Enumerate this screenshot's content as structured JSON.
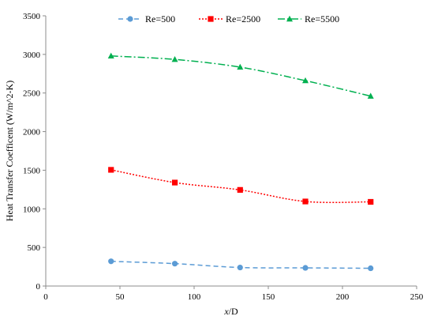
{
  "chart_data": {
    "type": "line",
    "xlabel_italic": "x",
    "xlabel_rest": "/D",
    "ylabel": "Heat Transfer Coefficent (W/m^2-K)",
    "xlim": [
      0,
      250
    ],
    "ylim": [
      0,
      3500
    ],
    "xticks": [
      "0",
      "50",
      "100",
      "150",
      "200",
      "250"
    ],
    "yticks": [
      "0",
      "500",
      "1000",
      "1500",
      "2000",
      "2500",
      "3000",
      "3500"
    ],
    "grid": false,
    "legend_position": "top",
    "series": [
      {
        "name": "Re=500",
        "color": "#5b9bd5",
        "marker": "circle",
        "line_style": "dashed",
        "x": [
          44,
          87,
          131,
          175,
          219
        ],
        "y": [
          320,
          290,
          240,
          235,
          230
        ]
      },
      {
        "name": "Re=2500",
        "color": "#ff0000",
        "marker": "square",
        "line_style": "dotted",
        "x": [
          44,
          87,
          131,
          175,
          219
        ],
        "y": [
          1505,
          1340,
          1245,
          1095,
          1090
        ]
      },
      {
        "name": "Re=5500",
        "color": "#00b050",
        "marker": "triangle",
        "line_style": "dash-dot",
        "x": [
          44,
          87,
          131,
          175,
          219
        ],
        "y": [
          2980,
          2935,
          2835,
          2660,
          2460
        ]
      }
    ]
  }
}
